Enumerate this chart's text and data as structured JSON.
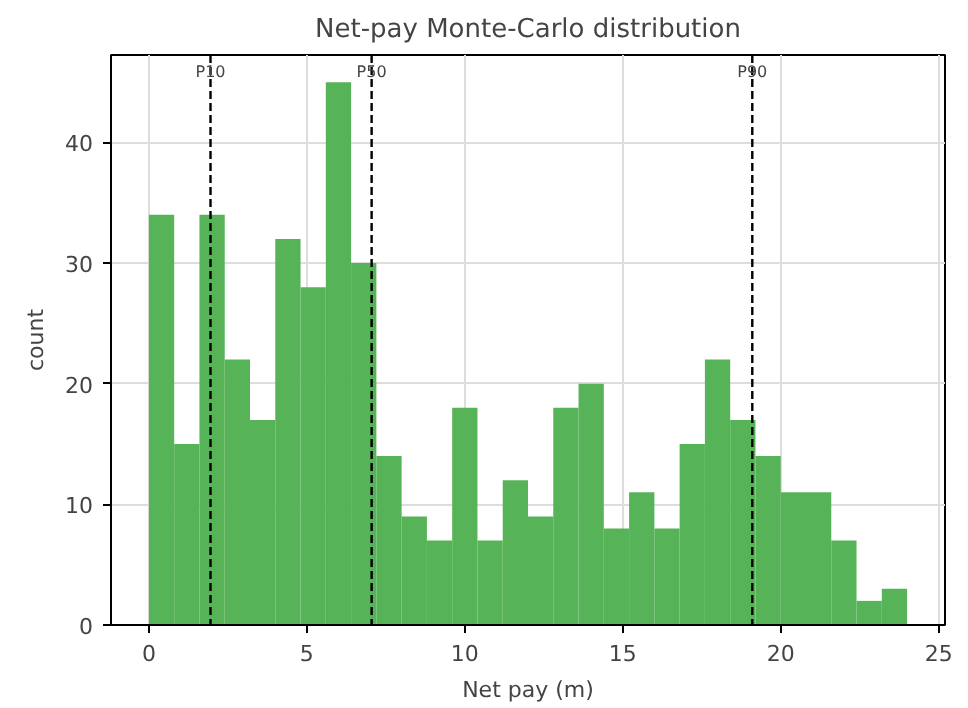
{
  "chart_data": {
    "type": "histogram",
    "title": "Net-pay Monte-Carlo distribution",
    "xlabel": "Net pay (m)",
    "ylabel": "count",
    "bins": [
      0,
      0.8,
      1.6,
      2.4,
      3.2,
      4.0,
      4.8,
      5.6,
      6.4,
      7.2,
      8.0,
      8.8,
      9.6,
      10.4,
      11.2,
      12.0,
      12.8,
      13.6,
      14.4,
      15.2,
      16.0,
      16.8,
      17.6,
      18.4,
      19.2,
      20.0,
      20.8,
      21.6,
      22.4,
      23.2,
      24.0
    ],
    "values": [
      34,
      15,
      34,
      22,
      17,
      32,
      28,
      45,
      30,
      14,
      9,
      7,
      18,
      7,
      12,
      9,
      18,
      20,
      8,
      11,
      8,
      15,
      22,
      17,
      14,
      11,
      11,
      7,
      2,
      3
    ],
    "color": "#57b357",
    "xlim": [
      -1.2,
      25.2
    ],
    "ylim": [
      0,
      47.25
    ],
    "xticks": [
      0,
      5,
      10,
      15,
      20,
      25
    ],
    "yticks": [
      0,
      10,
      20,
      30,
      40
    ],
    "ref_lines": [
      {
        "axis": "x",
        "value": 1.95,
        "label": "P10",
        "color": "#000000",
        "line_style": "dashed"
      },
      {
        "axis": "x",
        "value": 7.05,
        "label": "P50",
        "color": "#000000",
        "line_style": "dashed"
      },
      {
        "axis": "x",
        "value": 19.1,
        "label": "P90",
        "color": "#000000",
        "line_style": "dashed"
      }
    ],
    "grid": true
  }
}
